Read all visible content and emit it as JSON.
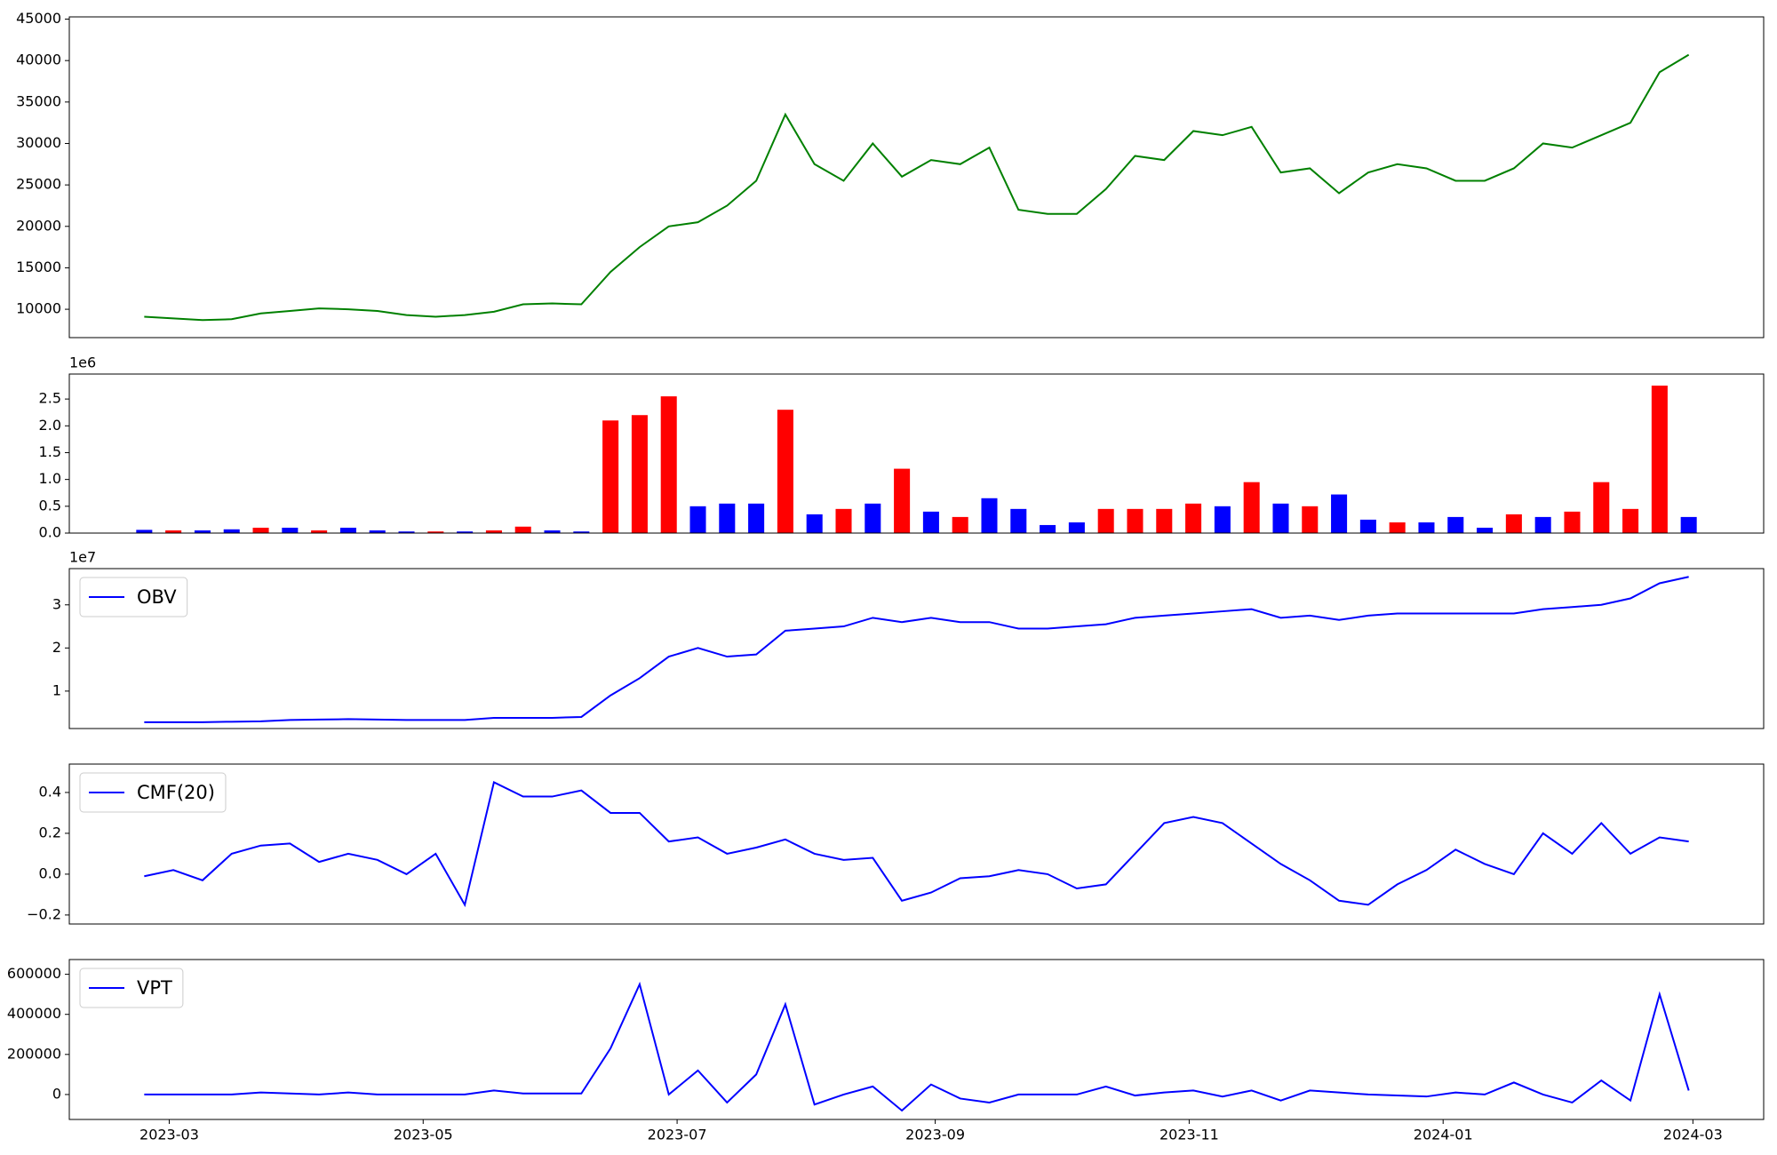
{
  "chart_data": [
    {
      "type": "line",
      "x": [
        "2023-02-23",
        "2023-03-02",
        "2023-03-09",
        "2023-03-16",
        "2023-03-23",
        "2023-03-30",
        "2023-04-06",
        "2023-04-13",
        "2023-04-20",
        "2023-04-27",
        "2023-05-04",
        "2023-05-11",
        "2023-05-18",
        "2023-05-25",
        "2023-06-01",
        "2023-06-08",
        "2023-06-15",
        "2023-06-22",
        "2023-06-29",
        "2023-07-06",
        "2023-07-13",
        "2023-07-20",
        "2023-07-27",
        "2023-08-03",
        "2023-08-10",
        "2023-08-17",
        "2023-08-24",
        "2023-08-31",
        "2023-09-07",
        "2023-09-14",
        "2023-09-21",
        "2023-09-28",
        "2023-10-05",
        "2023-10-12",
        "2023-10-19",
        "2023-10-26",
        "2023-11-02",
        "2023-11-09",
        "2023-11-16",
        "2023-11-23",
        "2023-11-30",
        "2023-12-07",
        "2023-12-14",
        "2023-12-21",
        "2023-12-28",
        "2024-01-04",
        "2024-01-11",
        "2024-01-18",
        "2024-01-25",
        "2024-02-01",
        "2024-02-08",
        "2024-02-15",
        "2024-02-22",
        "2024-02-29"
      ],
      "series": [
        {
          "color": "#008000",
          "values": [
            9100,
            8900,
            8700,
            8800,
            9500,
            9800,
            10100,
            10000,
            9800,
            9300,
            9100,
            9300,
            9700,
            10600,
            10700,
            10600,
            14500,
            17500,
            20000,
            20500,
            22500,
            25500,
            33500,
            27500,
            25500,
            30000,
            26000,
            28000,
            27500,
            29500,
            22000,
            21500,
            21500,
            24500,
            28500,
            28000,
            31500,
            31000,
            32000,
            26500,
            27000,
            24000,
            26500,
            27500,
            27000,
            25500,
            25500,
            27000,
            30000,
            29500,
            31000,
            32500,
            38600,
            40700
          ]
        }
      ],
      "xlim": [
        "2023-02-05",
        "2024-03-18"
      ],
      "ylim": [
        6580,
        45270
      ],
      "yticks": [
        10000,
        15000,
        20000,
        25000,
        30000,
        35000,
        40000,
        45000
      ]
    },
    {
      "type": "bar",
      "x": [
        "2023-02-23",
        "2023-03-02",
        "2023-03-09",
        "2023-03-16",
        "2023-03-23",
        "2023-03-30",
        "2023-04-06",
        "2023-04-13",
        "2023-04-20",
        "2023-04-27",
        "2023-05-04",
        "2023-05-11",
        "2023-05-18",
        "2023-05-25",
        "2023-06-01",
        "2023-06-08",
        "2023-06-15",
        "2023-06-22",
        "2023-06-29",
        "2023-07-06",
        "2023-07-13",
        "2023-07-20",
        "2023-07-27",
        "2023-08-03",
        "2023-08-10",
        "2023-08-17",
        "2023-08-24",
        "2023-08-31",
        "2023-09-07",
        "2023-09-14",
        "2023-09-21",
        "2023-09-28",
        "2023-10-05",
        "2023-10-12",
        "2023-10-19",
        "2023-10-26",
        "2023-11-02",
        "2023-11-09",
        "2023-11-16",
        "2023-11-23",
        "2023-11-30",
        "2023-12-07",
        "2023-12-14",
        "2023-12-21",
        "2023-12-28",
        "2024-01-04",
        "2024-01-11",
        "2024-01-18",
        "2024-01-25",
        "2024-02-01",
        "2024-02-08",
        "2024-02-15",
        "2024-02-22",
        "2024-02-29"
      ],
      "values": [
        60000,
        50000,
        50000,
        70000,
        100000,
        100000,
        50000,
        100000,
        50000,
        30000,
        30000,
        30000,
        50000,
        120000,
        50000,
        30000,
        2100000,
        2200000,
        2550000,
        500000,
        550000,
        550000,
        2300000,
        350000,
        450000,
        550000,
        1200000,
        400000,
        300000,
        650000,
        450000,
        150000,
        200000,
        450000,
        450000,
        450000,
        550000,
        500000,
        950000,
        550000,
        500000,
        720000,
        250000,
        200000,
        200000,
        300000,
        100000,
        350000,
        300000,
        400000,
        950000,
        450000,
        2750000,
        300000
      ],
      "colors": [
        "#0000ff",
        "#ff0000",
        "#0000ff",
        "#0000ff",
        "#ff0000",
        "#0000ff",
        "#ff0000",
        "#0000ff",
        "#0000ff",
        "#0000ff",
        "#ff0000",
        "#0000ff",
        "#ff0000",
        "#ff0000",
        "#0000ff",
        "#0000ff",
        "#ff0000",
        "#ff0000",
        "#ff0000",
        "#0000ff",
        "#0000ff",
        "#0000ff",
        "#ff0000",
        "#0000ff",
        "#ff0000",
        "#0000ff",
        "#ff0000",
        "#0000ff",
        "#ff0000",
        "#0000ff",
        "#0000ff",
        "#0000ff",
        "#0000ff",
        "#ff0000",
        "#ff0000",
        "#ff0000",
        "#ff0000",
        "#0000ff",
        "#ff0000",
        "#0000ff",
        "#ff0000",
        "#0000ff",
        "#0000ff",
        "#ff0000",
        "#0000ff",
        "#0000ff",
        "#0000ff",
        "#ff0000",
        "#0000ff",
        "#ff0000",
        "#ff0000",
        "#ff0000",
        "#ff0000",
        "#0000ff"
      ],
      "xlim": [
        "2023-02-05",
        "2024-03-18"
      ],
      "ylim": [
        0,
        2966000
      ],
      "yticks": [
        {
          "value": 0,
          "label": "0.0"
        },
        {
          "value": 500000,
          "label": "0.5"
        },
        {
          "value": 1000000,
          "label": "1.0"
        },
        {
          "value": 1500000,
          "label": "1.5"
        },
        {
          "value": 2000000,
          "label": "2.0"
        },
        {
          "value": 2500000,
          "label": "2.5"
        }
      ],
      "y_offset_label": "1e6"
    },
    {
      "type": "line",
      "x": [
        "2023-02-23",
        "2023-03-02",
        "2023-03-09",
        "2023-03-16",
        "2023-03-23",
        "2023-03-30",
        "2023-04-06",
        "2023-04-13",
        "2023-04-20",
        "2023-04-27",
        "2023-05-04",
        "2023-05-11",
        "2023-05-18",
        "2023-05-25",
        "2023-06-01",
        "2023-06-08",
        "2023-06-15",
        "2023-06-22",
        "2023-06-29",
        "2023-07-06",
        "2023-07-13",
        "2023-07-20",
        "2023-07-27",
        "2023-08-03",
        "2023-08-10",
        "2023-08-17",
        "2023-08-24",
        "2023-08-31",
        "2023-09-07",
        "2023-09-14",
        "2023-09-21",
        "2023-09-28",
        "2023-10-05",
        "2023-10-12",
        "2023-10-19",
        "2023-10-26",
        "2023-11-02",
        "2023-11-09",
        "2023-11-16",
        "2023-11-23",
        "2023-11-30",
        "2023-12-07",
        "2023-12-14",
        "2023-12-21",
        "2023-12-28",
        "2024-01-04",
        "2024-01-11",
        "2024-01-18",
        "2024-01-25",
        "2024-02-01",
        "2024-02-08",
        "2024-02-15",
        "2024-02-22",
        "2024-02-29"
      ],
      "series": [
        {
          "name": "OBV",
          "color": "#0000ff",
          "values": [
            2800000,
            2800000,
            2800000,
            2900000,
            3000000,
            3300000,
            3400000,
            3500000,
            3400000,
            3300000,
            3300000,
            3300000,
            3800000,
            3800000,
            3800000,
            4000000,
            9000000,
            13000000,
            18000000,
            20000000,
            18000000,
            18500000,
            24000000,
            24500000,
            25000000,
            27000000,
            26000000,
            27000000,
            26000000,
            26000000,
            24500000,
            24500000,
            25000000,
            25500000,
            27000000,
            27500000,
            28000000,
            28500000,
            29000000,
            27000000,
            27500000,
            26500000,
            27500000,
            28000000,
            28000000,
            28000000,
            28000000,
            28000000,
            29000000,
            29500000,
            30000000,
            31500000,
            35000000,
            36500000
          ]
        }
      ],
      "legend": "upper left",
      "xlim": [
        "2023-02-05",
        "2024-03-18"
      ],
      "ylim": [
        1320000,
        38400000
      ],
      "yticks": [
        {
          "value": 10000000,
          "label": "1"
        },
        {
          "value": 20000000,
          "label": "2"
        },
        {
          "value": 30000000,
          "label": "3"
        }
      ],
      "y_offset_label": "1e7"
    },
    {
      "type": "line",
      "x": [
        "2023-02-23",
        "2023-03-02",
        "2023-03-09",
        "2023-03-16",
        "2023-03-23",
        "2023-03-30",
        "2023-04-06",
        "2023-04-13",
        "2023-04-20",
        "2023-04-27",
        "2023-05-04",
        "2023-05-11",
        "2023-05-18",
        "2023-05-25",
        "2023-06-01",
        "2023-06-08",
        "2023-06-15",
        "2023-06-22",
        "2023-06-29",
        "2023-07-06",
        "2023-07-13",
        "2023-07-20",
        "2023-07-27",
        "2023-08-03",
        "2023-08-10",
        "2023-08-17",
        "2023-08-24",
        "2023-08-31",
        "2023-09-07",
        "2023-09-14",
        "2023-09-21",
        "2023-09-28",
        "2023-10-05",
        "2023-10-12",
        "2023-10-19",
        "2023-10-26",
        "2023-11-02",
        "2023-11-09",
        "2023-11-16",
        "2023-11-23",
        "2023-11-30",
        "2023-12-07",
        "2023-12-14",
        "2023-12-21",
        "2023-12-28",
        "2024-01-04",
        "2024-01-11",
        "2024-01-18",
        "2024-01-25",
        "2024-02-01",
        "2024-02-08",
        "2024-02-15",
        "2024-02-22",
        "2024-02-29"
      ],
      "series": [
        {
          "name": "CMF(20)",
          "color": "#0000ff",
          "values": [
            -0.01,
            0.02,
            -0.03,
            0.1,
            0.14,
            0.15,
            0.06,
            0.1,
            0.07,
            0.0,
            0.1,
            -0.15,
            0.45,
            0.38,
            0.38,
            0.41,
            0.3,
            0.3,
            0.16,
            0.18,
            0.1,
            0.13,
            0.17,
            0.1,
            0.07,
            0.08,
            -0.13,
            -0.09,
            -0.02,
            -0.01,
            0.02,
            0.0,
            -0.07,
            -0.05,
            0.1,
            0.25,
            0.28,
            0.25,
            0.15,
            0.05,
            -0.03,
            -0.13,
            -0.15,
            -0.05,
            0.02,
            0.12,
            0.05,
            0.0,
            0.2,
            0.1,
            0.25,
            0.1,
            0.18,
            0.16
          ]
        }
      ],
      "legend": "upper left",
      "xlim": [
        "2023-02-05",
        "2024-03-18"
      ],
      "ylim": [
        -0.244,
        0.539
      ],
      "yticks": [
        {
          "value": -0.2,
          "label": "−0.2"
        },
        {
          "value": 0,
          "label": "0.0"
        },
        0.2,
        0.4
      ]
    },
    {
      "type": "line",
      "x": [
        "2023-02-23",
        "2023-03-02",
        "2023-03-09",
        "2023-03-16",
        "2023-03-23",
        "2023-03-30",
        "2023-04-06",
        "2023-04-13",
        "2023-04-20",
        "2023-04-27",
        "2023-05-04",
        "2023-05-11",
        "2023-05-18",
        "2023-05-25",
        "2023-06-01",
        "2023-06-08",
        "2023-06-15",
        "2023-06-22",
        "2023-06-29",
        "2023-07-06",
        "2023-07-13",
        "2023-07-20",
        "2023-07-27",
        "2023-08-03",
        "2023-08-10",
        "2023-08-17",
        "2023-08-24",
        "2023-08-31",
        "2023-09-07",
        "2023-09-14",
        "2023-09-21",
        "2023-09-28",
        "2023-10-05",
        "2023-10-12",
        "2023-10-19",
        "2023-10-26",
        "2023-11-02",
        "2023-11-09",
        "2023-11-16",
        "2023-11-23",
        "2023-11-30",
        "2023-12-07",
        "2023-12-14",
        "2023-12-21",
        "2023-12-28",
        "2024-01-04",
        "2024-01-11",
        "2024-01-18",
        "2024-01-25",
        "2024-02-01",
        "2024-02-08",
        "2024-02-15",
        "2024-02-22",
        "2024-02-29"
      ],
      "series": [
        {
          "name": "VPT",
          "color": "#0000ff",
          "values": [
            0,
            0,
            0,
            0,
            10000,
            5000,
            0,
            10000,
            0,
            0,
            0,
            0,
            20000,
            5000,
            5000,
            5000,
            230000,
            550000,
            0,
            120000,
            -40000,
            100000,
            450000,
            -50000,
            0,
            40000,
            -80000,
            50000,
            -20000,
            -40000,
            0,
            0,
            0,
            40000,
            -5000,
            10000,
            20000,
            -10000,
            20000,
            -30000,
            20000,
            10000,
            0,
            -5000,
            -10000,
            10000,
            0,
            60000,
            0,
            -40000,
            70000,
            -30000,
            500000,
            20000
          ]
        }
      ],
      "legend": "upper left",
      "xlim": [
        "2023-02-05",
        "2024-03-18"
      ],
      "ylim": [
        -124500,
        673600
      ],
      "yticks": [
        0,
        200000,
        400000,
        600000
      ],
      "xticks": [
        {
          "value": "2023-03-01",
          "label": "2023-03"
        },
        {
          "value": "2023-05-01",
          "label": "2023-05"
        },
        {
          "value": "2023-07-01",
          "label": "2023-07"
        },
        {
          "value": "2023-09-01",
          "label": "2023-09"
        },
        {
          "value": "2023-11-01",
          "label": "2023-11"
        },
        {
          "value": "2024-01-01",
          "label": "2024-01"
        },
        {
          "value": "2024-03-01",
          "label": "2024-03"
        }
      ]
    }
  ]
}
